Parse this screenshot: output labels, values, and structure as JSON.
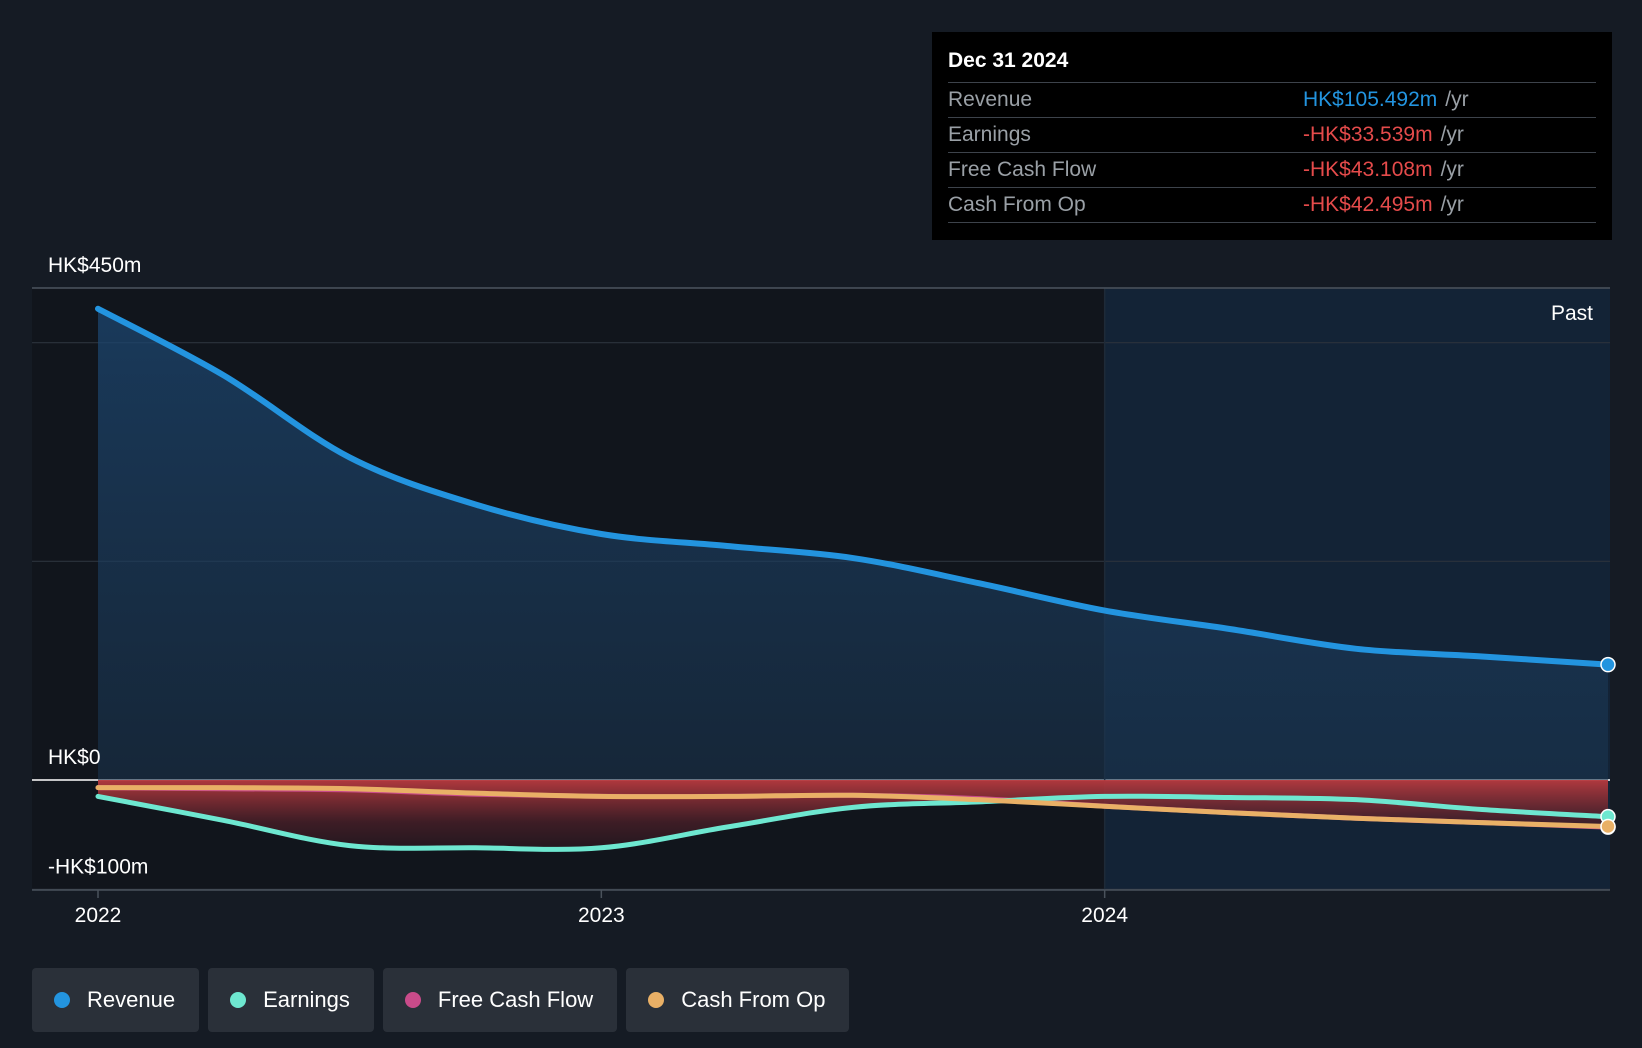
{
  "colors": {
    "background": "#151b24",
    "revenue": "#2394df",
    "earnings": "#6ee7d0",
    "free_cash_flow": "#c94b8a",
    "cash_from_op": "#e9b066",
    "negative": "#e54b4b",
    "forecast_band": "#132336"
  },
  "tooltip": {
    "date": "Dec 31 2024",
    "rows": [
      {
        "label": "Revenue",
        "value": "HK$105.492m",
        "unit": "/yr",
        "color": "#2394df"
      },
      {
        "label": "Earnings",
        "value": "-HK$33.539m",
        "unit": "/yr",
        "color": "#e54b4b"
      },
      {
        "label": "Free Cash Flow",
        "value": "-HK$43.108m",
        "unit": "/yr",
        "color": "#e54b4b"
      },
      {
        "label": "Cash From Op",
        "value": "-HK$42.495m",
        "unit": "/yr",
        "color": "#e54b4b"
      }
    ]
  },
  "legend": [
    {
      "label": "Revenue",
      "color": "#2394df"
    },
    {
      "label": "Earnings",
      "color": "#6ee7d0"
    },
    {
      "label": "Free Cash Flow",
      "color": "#c94b8a"
    },
    {
      "label": "Cash From Op",
      "color": "#e9b066"
    }
  ],
  "chart_data": {
    "type": "area",
    "title": "",
    "xlabel": "",
    "ylabel": "",
    "past_label": "Past",
    "xlim": [
      2022.0,
      2025.0
    ],
    "ylim": [
      -100,
      450
    ],
    "y_tick_labels": [
      {
        "value": 450,
        "label": "HK$450m"
      },
      {
        "value": 0,
        "label": "HK$0"
      },
      {
        "value": -100,
        "label": "-HK$100m"
      }
    ],
    "x_tick_labels": [
      {
        "value": 2022,
        "label": "2022"
      },
      {
        "value": 2023,
        "label": "2023"
      },
      {
        "value": 2024,
        "label": "2024"
      }
    ],
    "gridlines": [
      450,
      400,
      200,
      0,
      -100
    ],
    "highlight_start": 2024,
    "series": [
      {
        "name": "Revenue",
        "x": [
          2022.0,
          2022.25,
          2022.5,
          2022.75,
          2023.0,
          2023.25,
          2023.5,
          2023.75,
          2024.0,
          2024.25,
          2024.5,
          2024.75,
          2025.0
        ],
        "values": [
          431,
          370,
          295,
          252,
          225,
          214,
          203,
          180,
          155,
          138,
          120,
          113,
          105.492
        ]
      },
      {
        "name": "Earnings",
        "x": [
          2022.0,
          2022.25,
          2022.5,
          2022.75,
          2023.0,
          2023.25,
          2023.5,
          2023.75,
          2024.0,
          2024.25,
          2024.5,
          2024.75,
          2025.0
        ],
        "values": [
          -15,
          -37,
          -60,
          -62,
          -62,
          -43,
          -25,
          -20,
          -15,
          -16,
          -18,
          -27,
          -33.539
        ]
      },
      {
        "name": "Free Cash Flow",
        "x": [
          2022.0,
          2022.25,
          2022.5,
          2022.75,
          2023.0,
          2023.25,
          2023.5,
          2023.75,
          2024.0,
          2024.25,
          2024.5,
          2024.75,
          2025.0
        ],
        "values": [
          -7,
          -8,
          -9,
          -13,
          -15,
          -15,
          -14,
          -17,
          -24,
          -30,
          -35,
          -39,
          -43.108
        ]
      },
      {
        "name": "Cash From Op",
        "x": [
          2022.0,
          2022.25,
          2022.5,
          2022.75,
          2023.0,
          2023.25,
          2023.5,
          2023.75,
          2024.0,
          2024.25,
          2024.5,
          2024.75,
          2025.0
        ],
        "values": [
          -7,
          -7,
          -8,
          -12,
          -15,
          -15,
          -14,
          -18,
          -24,
          -30,
          -35,
          -39,
          -42.495
        ]
      }
    ]
  }
}
